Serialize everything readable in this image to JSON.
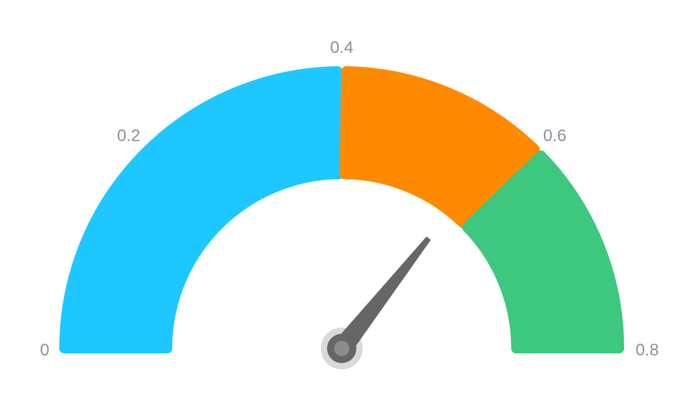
{
  "chart_data": {
    "type": "gauge",
    "min": 0,
    "max": 0.8,
    "value": 0.57,
    "ticks": [
      "0",
      "0.2",
      "0.4",
      "0.6",
      "0.8"
    ],
    "tick_values": [
      0,
      0.2,
      0.4,
      0.6,
      0.8
    ],
    "bands": [
      {
        "from": 0,
        "to": 0.4,
        "color": "#1ec7ff"
      },
      {
        "from": 0.4,
        "to": 0.6,
        "color": "#ff8a00"
      },
      {
        "from": 0.6,
        "to": 0.8,
        "color": "#3dc77f"
      }
    ],
    "needle_color": "#666666",
    "hub_color": "#8c8c8c",
    "hub_halo_color": "#d9d9d9"
  }
}
